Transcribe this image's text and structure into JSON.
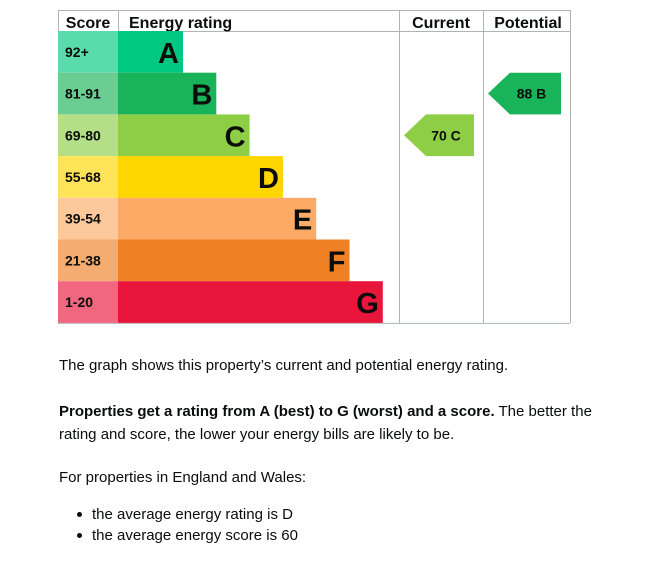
{
  "chart_data": {
    "type": "table",
    "headers": {
      "score": "Score",
      "rating": "Energy rating",
      "current": "Current",
      "potential": "Potential"
    },
    "bands": [
      {
        "score": "92+",
        "letter": "A",
        "color": "#00c781"
      },
      {
        "score": "81-91",
        "letter": "B",
        "color": "#19b459"
      },
      {
        "score": "69-80",
        "letter": "C",
        "color": "#8dce46"
      },
      {
        "score": "55-68",
        "letter": "D",
        "color": "#ffd500"
      },
      {
        "score": "39-54",
        "letter": "E",
        "color": "#fcaa65"
      },
      {
        "score": "21-38",
        "letter": "F",
        "color": "#ef8023"
      },
      {
        "score": "1-20",
        "letter": "G",
        "color": "#e9153b"
      }
    ],
    "current": {
      "value": 70,
      "letter": "C",
      "label": "70 C",
      "color": "#8dce46"
    },
    "potential": {
      "value": 88,
      "letter": "B",
      "label": "88 B",
      "color": "#19b459"
    }
  },
  "text": {
    "graph_description": "The graph shows this property’s current and potential energy rating.",
    "rating_intro_bold": "Properties get a rating from A (best) to G (worst) and a score.",
    "rating_intro_rest": " The better the rating and score, the lower your energy bills are likely to be.",
    "region_intro": "For properties in England and Wales:",
    "bullets": [
      "the average energy rating is D",
      "the average energy score is 60"
    ]
  }
}
